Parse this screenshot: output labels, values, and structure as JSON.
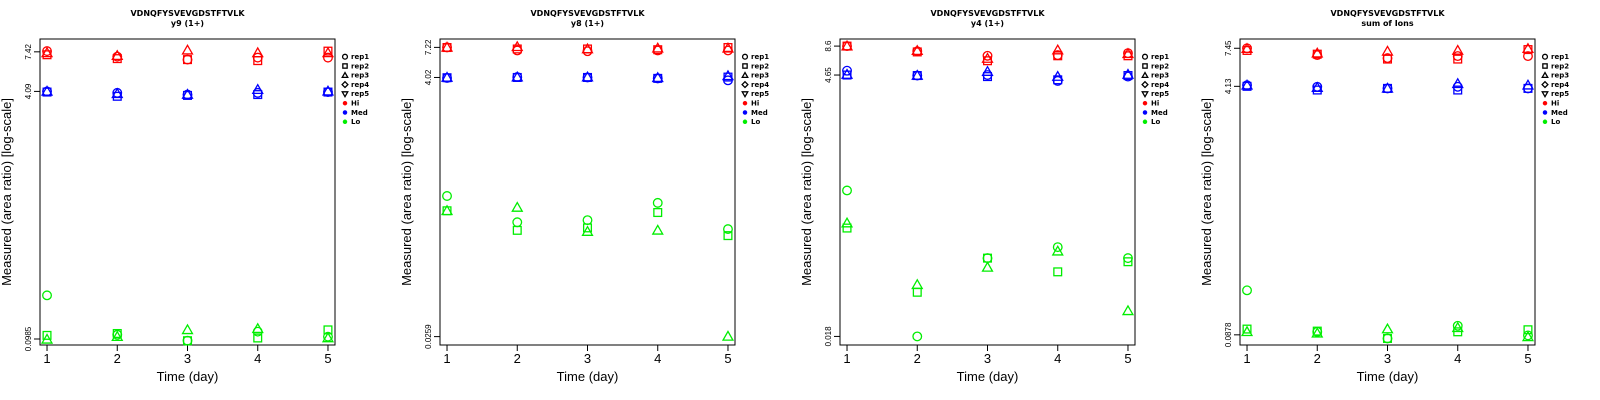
{
  "colors": {
    "Hi": "#ff0000",
    "Med": "#0000ff",
    "Lo": "#00ee00",
    "axis": "#000000"
  },
  "chart_data": [
    {
      "type": "scatter",
      "title": "VDNQFYSVEVGDSTFTVLK",
      "subtitle": "y9 (1+)",
      "xlabel": "Time (day)",
      "ylabel": "Measured (area ratio) [log-scale]",
      "log_y": true,
      "ylim": [
        0.09,
        9.0
      ],
      "xlim": [
        0.9,
        5.1
      ],
      "x_ticks": [
        "1",
        "2",
        "3",
        "4",
        "5"
      ],
      "y_ticks": [
        "0.0985",
        "4.09",
        "7.42"
      ],
      "grid": false,
      "legend_position": "right",
      "legend": [
        {
          "label": "rep1",
          "marker": "circle"
        },
        {
          "label": "rep2",
          "marker": "square"
        },
        {
          "label": "rep3",
          "marker": "triangle"
        },
        {
          "label": "rep4",
          "marker": "diamond"
        },
        {
          "label": "rep5",
          "marker": "down-triangle"
        },
        {
          "label": "Hi",
          "marker": "dot",
          "color": "Hi"
        },
        {
          "label": "Med",
          "marker": "dot",
          "color": "Med"
        },
        {
          "label": "Lo",
          "marker": "dot",
          "color": "Lo"
        }
      ],
      "series": [
        {
          "level": "Hi",
          "rep": "rep1",
          "marker": "circle",
          "x": [
            1,
            2,
            3,
            4,
            5
          ],
          "y": [
            7.5,
            6.9,
            6.6,
            6.8,
            6.8
          ]
        },
        {
          "level": "Hi",
          "rep": "rep2",
          "marker": "square",
          "x": [
            1,
            2,
            3,
            4,
            5
          ],
          "y": [
            7.1,
            6.7,
            6.6,
            6.5,
            7.5
          ]
        },
        {
          "level": "Hi",
          "rep": "rep3",
          "marker": "triangle",
          "x": [
            1,
            2,
            3,
            4,
            5
          ],
          "y": [
            7.3,
            7.0,
            7.6,
            7.3,
            7.3
          ]
        },
        {
          "level": "Med",
          "rep": "rep1",
          "marker": "circle",
          "x": [
            1,
            2,
            3,
            4,
            5
          ],
          "y": [
            4.09,
            4.0,
            3.9,
            4.0,
            4.05
          ]
        },
        {
          "level": "Med",
          "rep": "rep2",
          "marker": "square",
          "x": [
            1,
            2,
            3,
            4,
            5
          ],
          "y": [
            4.05,
            3.8,
            3.85,
            3.9,
            4.05
          ]
        },
        {
          "level": "Med",
          "rep": "rep3",
          "marker": "triangle",
          "x": [
            1,
            2,
            3,
            4,
            5
          ],
          "y": [
            4.09,
            3.95,
            3.9,
            4.2,
            4.1
          ]
        },
        {
          "level": "Lo",
          "rep": "rep1",
          "marker": "circle",
          "x": [
            1,
            2,
            3,
            4,
            5
          ],
          "y": [
            0.19,
            0.105,
            0.096,
            0.11,
            0.102
          ]
        },
        {
          "level": "Lo",
          "rep": "rep2",
          "marker": "square",
          "x": [
            1,
            2,
            3,
            4,
            5
          ],
          "y": [
            0.104,
            0.107,
            0.096,
            0.1,
            0.113
          ]
        },
        {
          "level": "Lo",
          "rep": "rep3",
          "marker": "triangle",
          "x": [
            1,
            2,
            3,
            4,
            5
          ],
          "y": [
            0.098,
            0.102,
            0.113,
            0.115,
            0.1
          ]
        }
      ]
    },
    {
      "type": "scatter",
      "title": "VDNQFYSVEVGDSTFTVLK",
      "subtitle": "y8 (1+)",
      "xlabel": "Time (day)",
      "ylabel": "Measured (area ratio) [log-scale]",
      "log_y": true,
      "ylim": [
        0.022,
        8.5
      ],
      "xlim": [
        0.9,
        5.1
      ],
      "x_ticks": [
        "1",
        "2",
        "3",
        "4",
        "5"
      ],
      "y_ticks": [
        "0.0259",
        "4.02",
        "7.22"
      ],
      "grid": false,
      "legend_position": "right",
      "legend": [
        {
          "label": "rep1",
          "marker": "circle"
        },
        {
          "label": "rep2",
          "marker": "square"
        },
        {
          "label": "rep3",
          "marker": "triangle"
        },
        {
          "label": "rep4",
          "marker": "diamond"
        },
        {
          "label": "rep5",
          "marker": "down-triangle"
        },
        {
          "label": "Hi",
          "marker": "dot",
          "color": "Hi"
        },
        {
          "label": "Med",
          "marker": "dot",
          "color": "Med"
        },
        {
          "label": "Lo",
          "marker": "dot",
          "color": "Lo"
        }
      ],
      "series": [
        {
          "level": "Hi",
          "rep": "rep1",
          "marker": "circle",
          "x": [
            1,
            2,
            3,
            4,
            5
          ],
          "y": [
            7.22,
            6.8,
            6.7,
            6.8,
            6.8
          ]
        },
        {
          "level": "Hi",
          "rep": "rep2",
          "marker": "square",
          "x": [
            1,
            2,
            3,
            4,
            5
          ],
          "y": [
            7.2,
            7.0,
            7.0,
            6.9,
            7.2
          ]
        },
        {
          "level": "Hi",
          "rep": "rep3",
          "marker": "triangle",
          "x": [
            1,
            2,
            3,
            4,
            5
          ],
          "y": [
            7.22,
            7.3,
            7.0,
            7.1,
            7.1
          ]
        },
        {
          "level": "Med",
          "rep": "rep1",
          "marker": "circle",
          "x": [
            1,
            2,
            3,
            4,
            5
          ],
          "y": [
            3.98,
            4.05,
            4.02,
            3.95,
            3.8
          ]
        },
        {
          "level": "Med",
          "rep": "rep2",
          "marker": "square",
          "x": [
            1,
            2,
            3,
            4,
            5
          ],
          "y": [
            4.0,
            4.02,
            4.02,
            3.95,
            4.05
          ]
        },
        {
          "level": "Med",
          "rep": "rep3",
          "marker": "triangle",
          "x": [
            1,
            2,
            3,
            4,
            5
          ],
          "y": [
            4.02,
            4.05,
            4.05,
            4.0,
            4.15
          ]
        },
        {
          "level": "Lo",
          "rep": "rep1",
          "marker": "circle",
          "x": [
            1,
            2,
            3,
            4,
            5
          ],
          "y": [
            0.4,
            0.24,
            0.25,
            0.35,
            0.21
          ]
        },
        {
          "level": "Lo",
          "rep": "rep2",
          "marker": "square",
          "x": [
            1,
            2,
            3,
            4,
            5
          ],
          "y": [
            0.3,
            0.205,
            0.215,
            0.29,
            0.185
          ]
        },
        {
          "level": "Lo",
          "rep": "rep3",
          "marker": "triangle",
          "x": [
            1,
            2,
            3,
            4,
            5
          ],
          "y": [
            0.3,
            0.32,
            0.2,
            0.205,
            0.026
          ]
        }
      ]
    },
    {
      "type": "scatter",
      "title": "VDNQFYSVEVGDSTFTVLK",
      "subtitle": "y4 (1+)",
      "xlabel": "Time (day)",
      "ylabel": "Measured (area ratio) [log-scale]",
      "log_y": true,
      "ylim": [
        0.015,
        10.0
      ],
      "xlim": [
        0.9,
        5.1
      ],
      "x_ticks": [
        "1",
        "2",
        "3",
        "4",
        "5"
      ],
      "y_ticks": [
        "0.018",
        "4.65",
        "8.6"
      ],
      "grid": false,
      "legend_position": "right",
      "legend": [
        {
          "label": "rep1",
          "marker": "circle"
        },
        {
          "label": "rep2",
          "marker": "square"
        },
        {
          "label": "rep3",
          "marker": "triangle"
        },
        {
          "label": "rep4",
          "marker": "diamond"
        },
        {
          "label": "rep5",
          "marker": "down-triangle"
        },
        {
          "label": "Hi",
          "marker": "dot",
          "color": "Hi"
        },
        {
          "label": "Med",
          "marker": "dot",
          "color": "Med"
        },
        {
          "label": "Lo",
          "marker": "dot",
          "color": "Lo"
        }
      ],
      "series": [
        {
          "level": "Hi",
          "rep": "rep1",
          "marker": "circle",
          "x": [
            1,
            2,
            3,
            4,
            5
          ],
          "y": [
            8.6,
            7.7,
            7.0,
            7.1,
            7.4
          ]
        },
        {
          "level": "Hi",
          "rep": "rep2",
          "marker": "square",
          "x": [
            1,
            2,
            3,
            4,
            5
          ],
          "y": [
            8.6,
            7.6,
            6.3,
            7.0,
            7.0
          ]
        },
        {
          "level": "Hi",
          "rep": "rep3",
          "marker": "triangle",
          "x": [
            1,
            2,
            3,
            4,
            5
          ],
          "y": [
            8.6,
            7.8,
            6.6,
            7.9,
            7.3
          ]
        },
        {
          "level": "Med",
          "rep": "rep1",
          "marker": "circle",
          "x": [
            1,
            2,
            3,
            4,
            5
          ],
          "y": [
            5.1,
            4.6,
            4.65,
            4.1,
            4.5
          ]
        },
        {
          "level": "Med",
          "rep": "rep2",
          "marker": "square",
          "x": [
            1,
            2,
            3,
            4,
            5
          ],
          "y": [
            4.65,
            4.6,
            4.5,
            4.2,
            4.6
          ]
        },
        {
          "level": "Med",
          "rep": "rep3",
          "marker": "triangle",
          "x": [
            1,
            2,
            3,
            4,
            5
          ],
          "y": [
            4.7,
            4.6,
            5.0,
            4.5,
            4.7
          ]
        },
        {
          "level": "Lo",
          "rep": "rep1",
          "marker": "circle",
          "x": [
            1,
            2,
            3,
            4,
            5
          ],
          "y": [
            0.4,
            0.018,
            0.095,
            0.12,
            0.095
          ]
        },
        {
          "level": "Lo",
          "rep": "rep2",
          "marker": "square",
          "x": [
            1,
            2,
            3,
            4,
            5
          ],
          "y": [
            0.18,
            0.046,
            0.095,
            0.071,
            0.088
          ]
        },
        {
          "level": "Lo",
          "rep": "rep3",
          "marker": "triangle",
          "x": [
            1,
            2,
            3,
            4,
            5
          ],
          "y": [
            0.2,
            0.054,
            0.078,
            0.11,
            0.031
          ]
        }
      ]
    },
    {
      "type": "scatter",
      "title": "VDNQFYSVEVGDSTFTVLK",
      "subtitle": "sum of Ions",
      "xlabel": "Time (day)",
      "ylabel": "Measured (area ratio) [log-scale]",
      "log_y": true,
      "ylim": [
        0.075,
        8.6
      ],
      "xlim": [
        0.9,
        5.1
      ],
      "x_ticks": [
        "1",
        "2",
        "3",
        "4",
        "5"
      ],
      "y_ticks": [
        "0.0878",
        "4.13",
        "7.45"
      ],
      "grid": false,
      "legend_position": "right",
      "legend": [
        {
          "label": "rep1",
          "marker": "circle"
        },
        {
          "label": "rep2",
          "marker": "square"
        },
        {
          "label": "rep3",
          "marker": "triangle"
        },
        {
          "label": "rep4",
          "marker": "diamond"
        },
        {
          "label": "rep5",
          "marker": "down-triangle"
        },
        {
          "label": "Hi",
          "marker": "dot",
          "color": "Hi"
        },
        {
          "label": "Med",
          "marker": "dot",
          "color": "Med"
        },
        {
          "label": "Lo",
          "marker": "dot",
          "color": "Lo"
        }
      ],
      "series": [
        {
          "level": "Hi",
          "rep": "rep1",
          "marker": "circle",
          "x": [
            1,
            2,
            3,
            4,
            5
          ],
          "y": [
            7.45,
            6.7,
            6.4,
            6.6,
            6.6
          ]
        },
        {
          "level": "Hi",
          "rep": "rep2",
          "marker": "square",
          "x": [
            1,
            2,
            3,
            4,
            5
          ],
          "y": [
            7.2,
            6.8,
            6.3,
            6.3,
            7.3
          ]
        },
        {
          "level": "Hi",
          "rep": "rep3",
          "marker": "triangle",
          "x": [
            1,
            2,
            3,
            4,
            5
          ],
          "y": [
            7.4,
            6.9,
            7.1,
            7.2,
            7.4
          ]
        },
        {
          "level": "Med",
          "rep": "rep1",
          "marker": "circle",
          "x": [
            1,
            2,
            3,
            4,
            5
          ],
          "y": [
            4.2,
            4.1,
            4.0,
            4.1,
            4.0
          ]
        },
        {
          "level": "Med",
          "rep": "rep2",
          "marker": "square",
          "x": [
            1,
            2,
            3,
            4,
            5
          ],
          "y": [
            4.13,
            3.9,
            4.0,
            3.9,
            4.0
          ]
        },
        {
          "level": "Med",
          "rep": "rep3",
          "marker": "triangle",
          "x": [
            1,
            2,
            3,
            4,
            5
          ],
          "y": [
            4.2,
            4.05,
            4.0,
            4.3,
            4.2
          ]
        },
        {
          "level": "Lo",
          "rep": "rep1",
          "marker": "circle",
          "x": [
            1,
            2,
            3,
            4,
            5
          ],
          "y": [
            0.175,
            0.092,
            0.083,
            0.101,
            0.087
          ]
        },
        {
          "level": "Lo",
          "rep": "rep2",
          "marker": "square",
          "x": [
            1,
            2,
            3,
            4,
            5
          ],
          "y": [
            0.096,
            0.093,
            0.083,
            0.092,
            0.095
          ]
        },
        {
          "level": "Lo",
          "rep": "rep3",
          "marker": "triangle",
          "x": [
            1,
            2,
            3,
            4,
            5
          ],
          "y": [
            0.092,
            0.09,
            0.096,
            0.098,
            0.085
          ]
        }
      ]
    }
  ]
}
